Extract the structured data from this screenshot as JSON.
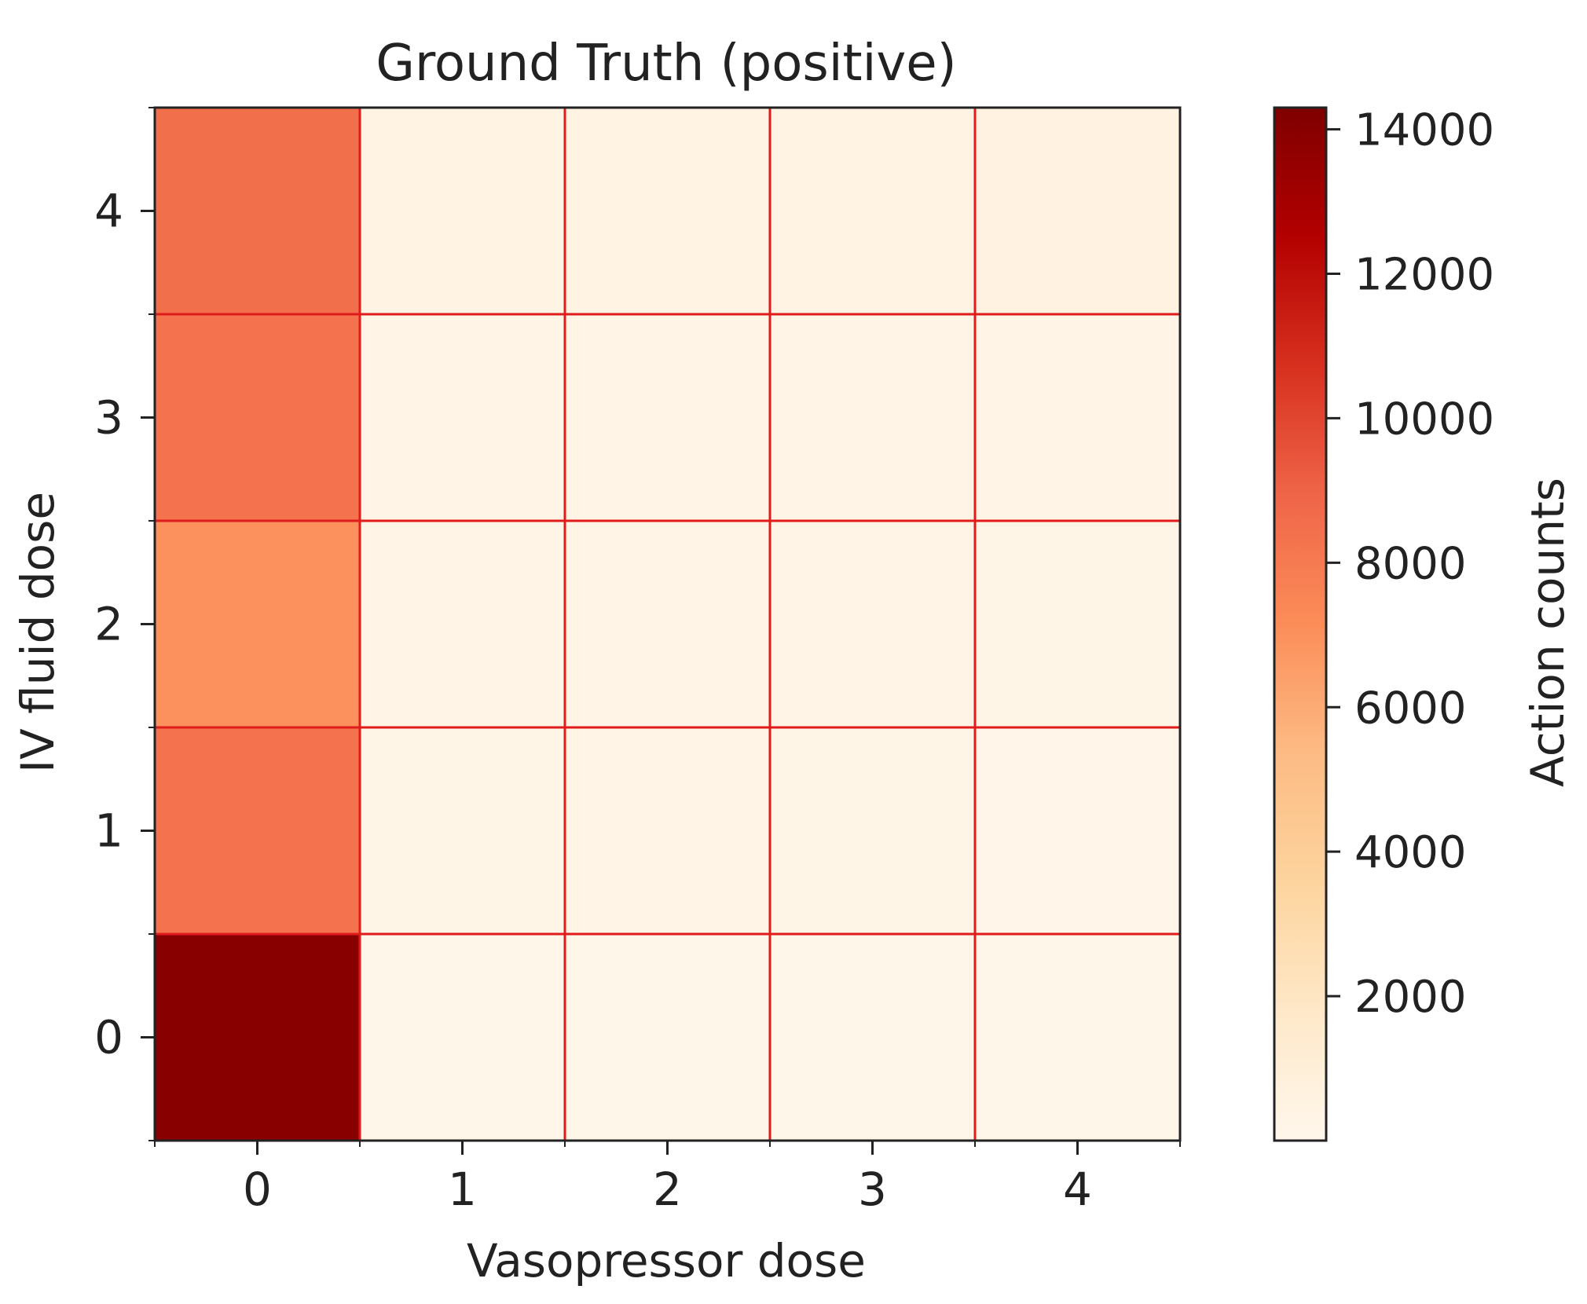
{
  "chart_data": {
    "type": "heatmap",
    "title": "Ground Truth (positive)",
    "xlabel": "Vasopressor dose",
    "ylabel": "IV fluid dose",
    "x_categories": [
      "0",
      "1",
      "2",
      "3",
      "4"
    ],
    "y_categories": [
      "0",
      "1",
      "2",
      "3",
      "4"
    ],
    "values": [
      [
        14000,
        100,
        120,
        110,
        100
      ],
      [
        8300,
        250,
        300,
        250,
        200
      ],
      [
        7000,
        300,
        350,
        300,
        250
      ],
      [
        8300,
        300,
        350,
        350,
        300
      ],
      [
        8500,
        400,
        450,
        450,
        600
      ]
    ],
    "value_order": "rows from y=0 (bottom) to y=4 (top); columns from x=0 to x=4",
    "colorbar": {
      "label": "Action counts",
      "ticks": [
        2000,
        4000,
        6000,
        8000,
        10000,
        12000,
        14000
      ],
      "tick_labels": [
        "2000",
        "4000",
        "6000",
        "8000",
        "10000",
        "12000",
        "14000"
      ],
      "range": [
        0,
        14300
      ],
      "colormap": "OrRd"
    },
    "grid": true,
    "grid_color": "#e01b1b",
    "colormap_stops": [
      "#fff7ec",
      "#fee8c8",
      "#fdd49e",
      "#fdbb84",
      "#fc8d59",
      "#ef6548",
      "#d7301f",
      "#b30000",
      "#7f0000"
    ]
  }
}
